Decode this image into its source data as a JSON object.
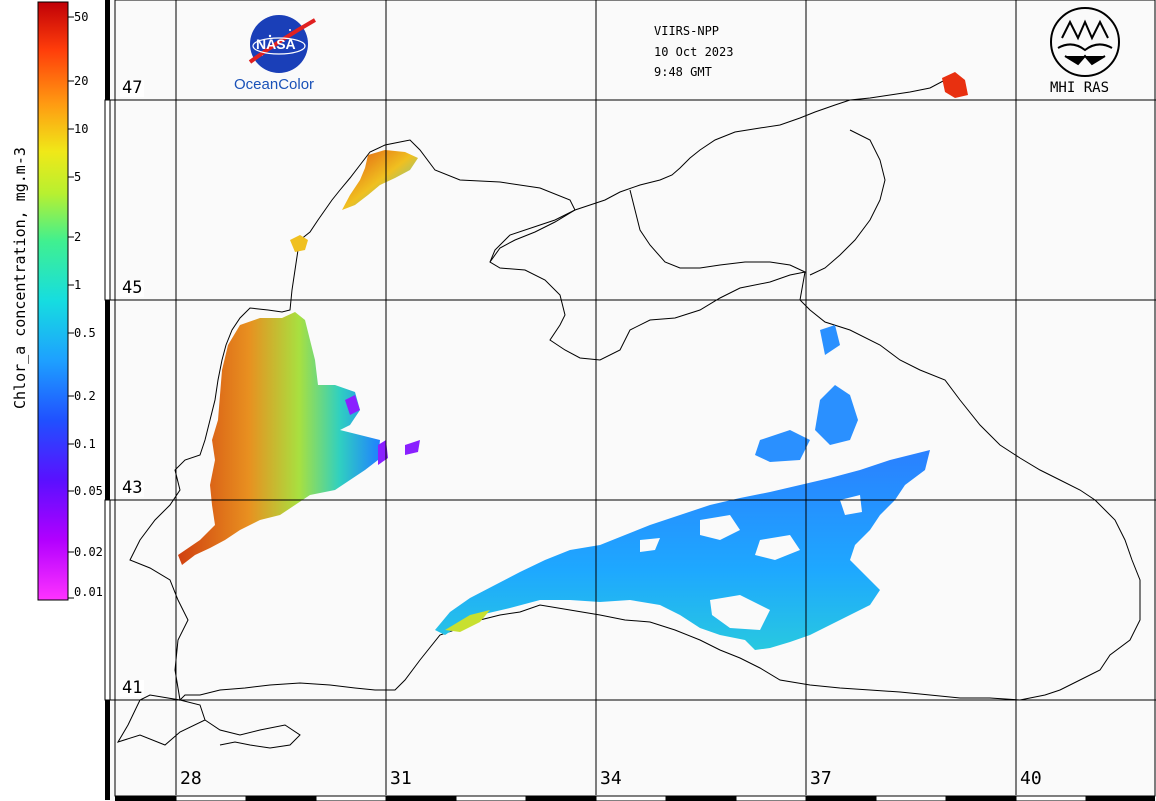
{
  "colorbar": {
    "title": "Chlor_a concentration, mg.m-3",
    "ticks": [
      "50",
      "20",
      "10",
      "5",
      "2",
      "1",
      "0.5",
      "0.2",
      "0.1",
      "0.05",
      "0.02",
      "0.01"
    ],
    "colors": [
      "#ff33ff",
      "#b200ff",
      "#6a00ff",
      "#2a3bff",
      "#1e7bff",
      "#10b4ff",
      "#18e0d0",
      "#3ef09a",
      "#a8f03a",
      "#e8e81a",
      "#ff9a12",
      "#ff3d0a",
      "#c80008"
    ]
  },
  "grid": {
    "latitudes": [
      "47",
      "45",
      "43",
      "41"
    ],
    "longitudes": [
      "28",
      "31",
      "34",
      "37",
      "40"
    ]
  },
  "header": {
    "sensor": "VIIRS-NPP",
    "date": "10 Oct 2023",
    "time": "9:48 GMT"
  },
  "logos": {
    "nasa": "NASA",
    "oceancolor": "OceanColor",
    "mhi": "MHI RAS"
  }
}
